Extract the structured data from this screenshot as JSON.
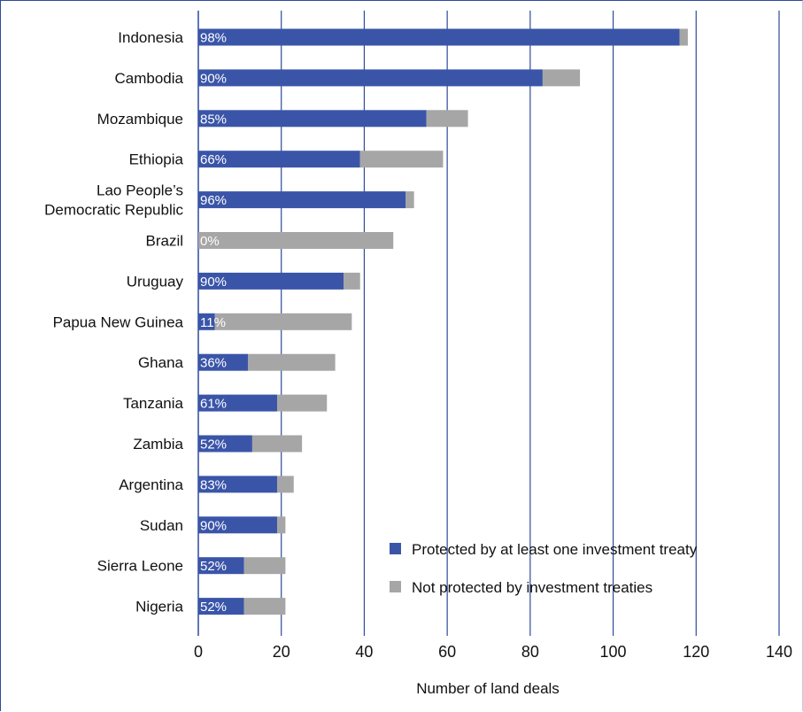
{
  "chart_data": {
    "type": "bar",
    "orientation": "horizontal",
    "stacked": true,
    "categories": [
      "Indonesia",
      "Cambodia",
      "Mozambique",
      "Ethiopia",
      "Lao People’s Democratic Republic",
      "Brazil",
      "Uruguay",
      "Papua New Guinea",
      "Ghana",
      "Tanzania",
      "Zambia",
      "Argentina",
      "Sudan",
      "Sierra Leone",
      "Nigeria"
    ],
    "category_lines": [
      [
        "Indonesia"
      ],
      [
        "Cambodia"
      ],
      [
        "Mozambique"
      ],
      [
        "Ethiopia"
      ],
      [
        "Lao People’s",
        "Democratic Republic"
      ],
      [
        "Brazil"
      ],
      [
        "Uruguay"
      ],
      [
        "Papua New Guinea"
      ],
      [
        "Ghana"
      ],
      [
        "Tanzania"
      ],
      [
        "Zambia"
      ],
      [
        "Argentina"
      ],
      [
        "Sudan"
      ],
      [
        "Sierra Leone"
      ],
      [
        "Nigeria"
      ]
    ],
    "series": [
      {
        "name": "Protected by at least one investment treaty",
        "color": "#3a55a8",
        "values": [
          116,
          83,
          55,
          39,
          50,
          0,
          35,
          4,
          12,
          19,
          13,
          19,
          19,
          11,
          11
        ]
      },
      {
        "name": "Not protected by investment treaties",
        "color": "#a6a6a6",
        "values": [
          2,
          9,
          10,
          20,
          2,
          47,
          4,
          33,
          21,
          12,
          12,
          4,
          2,
          10,
          10
        ]
      }
    ],
    "bar_labels": [
      "98%",
      "90%",
      "85%",
      "66%",
      "96%",
      "0%",
      "90%",
      "11%",
      "36%",
      "61%",
      "52%",
      "83%",
      "90%",
      "52%",
      "52%"
    ],
    "xlabel": "Number of land deals",
    "xlim": [
      0,
      140
    ],
    "xticks": [
      0,
      20,
      40,
      60,
      80,
      100,
      120,
      140
    ],
    "tick_labels": [
      "0",
      "20",
      "40",
      "60",
      "80",
      "100",
      "120",
      "140"
    ],
    "grid": "vertical",
    "gridline_color": "#2e4a9a",
    "legend_position": "bottom-right"
  }
}
